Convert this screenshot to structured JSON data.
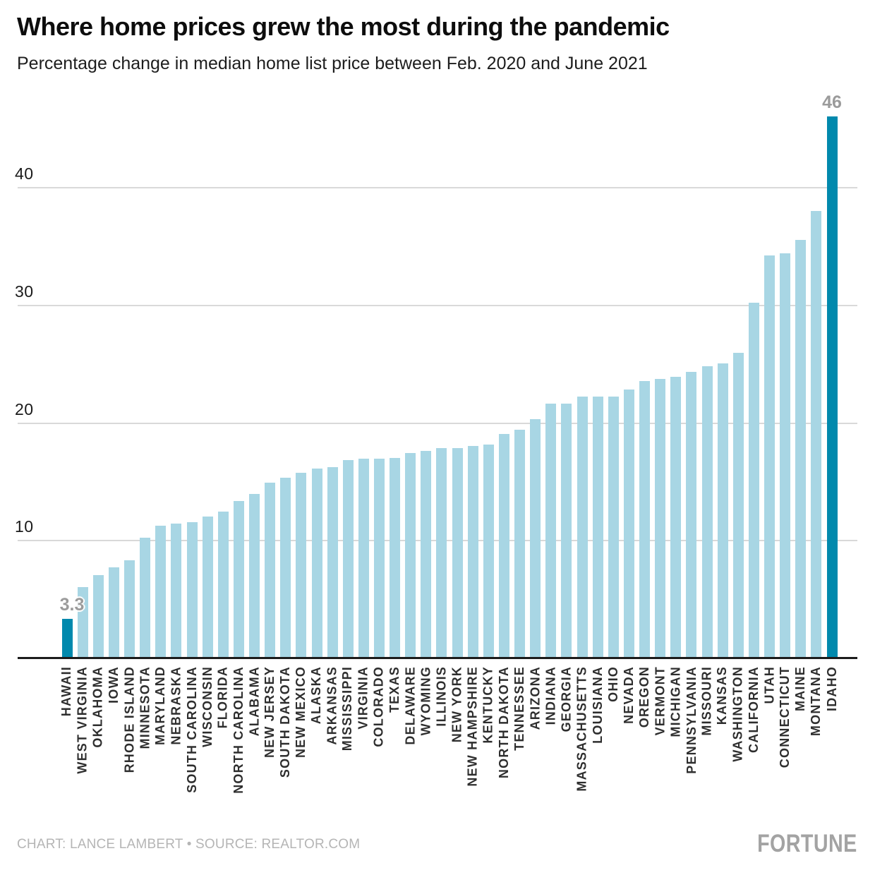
{
  "header": {
    "title": "Where home prices grew the most during the pandemic",
    "subtitle": "Percentage change in median home list price between Feb. 2020 and June 2021"
  },
  "footer": {
    "credit": "CHART: LANCE LAMBERT • SOURCE: REALTOR.COM",
    "logo": "FORTUNE"
  },
  "chart_data": {
    "type": "bar",
    "title": "Where home prices grew the most during the pandemic",
    "subtitle": "Percentage change in median home list price between Feb. 2020 and June 2021",
    "xlabel": "",
    "ylabel": "Percentage change in median home list price",
    "categories": [
      "HAWAII",
      "WEST VIRGINIA",
      "OKLAHOMA",
      "IOWA",
      "RHODE ISLAND",
      "MINNESOTA",
      "MARYLAND",
      "NEBRASKA",
      "SOUTH CAROLINA",
      "WISCONSIN",
      "FLORIDA",
      "NORTH CAROLINA",
      "ALABAMA",
      "NEW JERSEY",
      "SOUTH DAKOTA",
      "NEW MEXICO",
      "ALASKA",
      "ARKANSAS",
      "MISSISSIPPI",
      "VIRGINIA",
      "COLORADO",
      "TEXAS",
      "DELAWARE",
      "WYOMING",
      "ILLINOIS",
      "NEW YORK",
      "NEW HAMPSHIRE",
      "KENTUCKY",
      "NORTH DAKOTA",
      "TENNESSEE",
      "ARIZONA",
      "INDIANA",
      "GEORGIA",
      "MASSACHUSETTS",
      "LOUISIANA",
      "OHIO",
      "NEVADA",
      "OREGON",
      "VERMONT",
      "MICHIGAN",
      "PENNSYLVANIA",
      "MISSOURI",
      "KANSAS",
      "WASHINGTON",
      "CALIFORNIA",
      "UTAH",
      "CONNECTICUT",
      "MAINE",
      "MONTANA",
      "IDAHO"
    ],
    "values": [
      3.3,
      6.0,
      7.0,
      7.7,
      8.3,
      10.2,
      11.2,
      11.4,
      11.5,
      12.0,
      12.4,
      13.3,
      13.9,
      14.9,
      15.3,
      15.7,
      16.1,
      16.2,
      16.8,
      16.9,
      16.9,
      17.0,
      17.4,
      17.6,
      17.8,
      17.8,
      18.0,
      18.1,
      19.0,
      19.4,
      20.3,
      21.6,
      21.6,
      22.2,
      22.2,
      22.2,
      22.8,
      23.5,
      23.7,
      23.9,
      24.3,
      24.8,
      25.0,
      25.9,
      30.2,
      34.2,
      34.4,
      35.5,
      38.0,
      46
    ],
    "yticks": [
      10,
      20,
      30,
      40
    ],
    "ylim": [
      0,
      47
    ],
    "grid": "horizontal",
    "legend": "none",
    "bar_color": "#a8d6e4",
    "highlight_color": "#0089ad",
    "highlight_indices": [
      0,
      49
    ],
    "data_labels": [
      {
        "index": 0,
        "text": "3.3",
        "dx": 7
      },
      {
        "index": 49,
        "text": "46",
        "dx": 0
      }
    ]
  },
  "colors": {
    "background": "#ffffff",
    "gridline": "#d9d9d9",
    "axis": "#1c1c1c",
    "tick_text": "#1a1a1a",
    "category_text": "#2e2e2e",
    "annotation_text": "#9b9b9b",
    "credit_text": "#b5b5b5",
    "logo_text": "#a3a3a3"
  }
}
